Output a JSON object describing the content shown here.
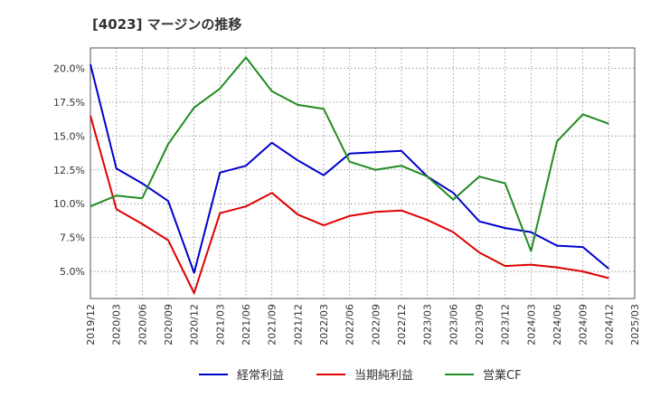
{
  "chart_data": {
    "type": "line",
    "title": "[4023]  マージンの推移",
    "x": [
      "2019/12",
      "2020/03",
      "2020/06",
      "2020/09",
      "2020/12",
      "2021/03",
      "2021/06",
      "2021/09",
      "2021/12",
      "2022/03",
      "2022/06",
      "2022/09",
      "2022/12",
      "2023/03",
      "2023/06",
      "2023/09",
      "2023/12",
      "2024/03",
      "2024/06",
      "2024/09",
      "2024/12"
    ],
    "x_ticks": [
      "2019/12",
      "2020/03",
      "2020/06",
      "2020/09",
      "2020/12",
      "2021/03",
      "2021/06",
      "2021/09",
      "2021/12",
      "2022/03",
      "2022/06",
      "2022/09",
      "2022/12",
      "2023/03",
      "2023/06",
      "2023/09",
      "2023/12",
      "2024/03",
      "2024/06",
      "2024/09",
      "2024/12",
      "2025/03"
    ],
    "y_ticks": [
      "5.0%",
      "7.5%",
      "10.0%",
      "12.5%",
      "15.0%",
      "17.5%",
      "20.0%"
    ],
    "y_tick_values": [
      5.0,
      7.5,
      10.0,
      12.5,
      15.0,
      17.5,
      20.0
    ],
    "ylim": [
      3.0,
      21.5
    ],
    "grid": true,
    "legend_position": "bottom",
    "series": [
      {
        "name": "経常利益",
        "color": "#0000cc",
        "values": [
          20.3,
          12.6,
          11.5,
          10.2,
          4.9,
          12.3,
          12.8,
          14.5,
          13.2,
          12.1,
          13.7,
          13.8,
          13.9,
          12.0,
          10.8,
          8.7,
          8.2,
          7.9,
          6.9,
          6.8,
          5.2
        ]
      },
      {
        "name": "当期純利益",
        "color": "#e00000",
        "values": [
          16.5,
          9.6,
          8.5,
          7.3,
          3.4,
          9.3,
          9.8,
          10.8,
          9.2,
          8.4,
          9.1,
          9.4,
          9.5,
          8.8,
          7.9,
          6.4,
          5.4,
          5.5,
          5.3,
          5.0,
          4.5
        ]
      },
      {
        "name": "営業CF",
        "color": "#228b22",
        "values": [
          9.8,
          10.6,
          10.4,
          14.4,
          17.1,
          18.5,
          20.8,
          18.3,
          17.3,
          17.0,
          13.1,
          12.5,
          12.8,
          12.0,
          10.3,
          12.0,
          11.5,
          6.5,
          14.6,
          16.6,
          15.9
        ]
      }
    ]
  }
}
